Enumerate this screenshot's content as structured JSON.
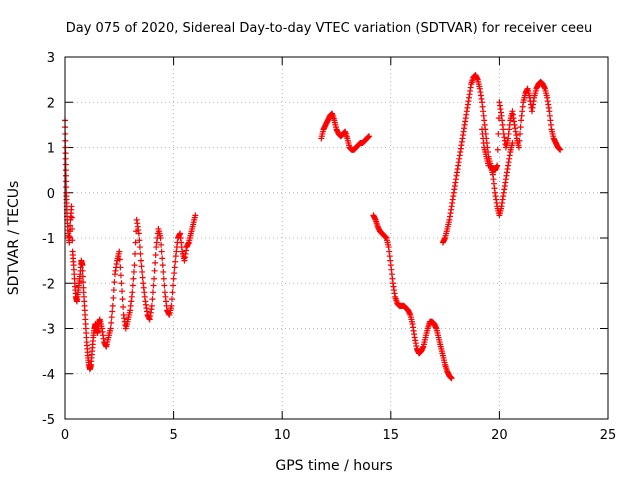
{
  "chart_data": {
    "type": "scatter",
    "title": "Day 075 of 2020, Sidereal Day-to-day VTEC variation (SDTVAR) for receiver ceeu",
    "xlabel": "GPS time / hours",
    "ylabel": "SDTVAR / TECUs",
    "xlim": [
      0,
      25
    ],
    "ylim": [
      -5,
      3
    ],
    "x_ticks": [
      0,
      5,
      10,
      15,
      20,
      25
    ],
    "y_ticks": [
      -5,
      -4,
      -3,
      -2,
      -1,
      0,
      1,
      2,
      3
    ],
    "x_tick_labels": [
      "0",
      "5",
      "10",
      "15",
      "20",
      "25"
    ],
    "y_tick_labels": [
      "-5",
      "-4",
      "-3",
      "-2",
      "-1",
      "0",
      "1",
      "2",
      "3"
    ],
    "grid": true,
    "marker": "+",
    "color": "#ff0000",
    "series": [
      {
        "name": "SDTVAR",
        "segments": [
          {
            "x": [
              0.0,
              0.02,
              0.04,
              0.06,
              0.08,
              0.1,
              0.15,
              0.2,
              0.25,
              0.3,
              0.35,
              0.4,
              0.45,
              0.5,
              0.55,
              0.6,
              0.65,
              0.7,
              0.75,
              0.8,
              0.85,
              0.9,
              0.95,
              1.0,
              1.05,
              1.1,
              1.15,
              1.2,
              1.25,
              1.3,
              1.35,
              1.4,
              1.45,
              1.5,
              1.55,
              1.6,
              1.7,
              1.8,
              1.9,
              2.0,
              2.1,
              2.2,
              2.3,
              2.4,
              2.5,
              2.6,
              2.7,
              2.8,
              2.9,
              3.0,
              3.1,
              3.2,
              3.3,
              3.4,
              3.5,
              3.6,
              3.7,
              3.8,
              3.9,
              4.0,
              4.1,
              4.2,
              4.3,
              4.4,
              4.5,
              4.6,
              4.7,
              4.8,
              4.9,
              5.0,
              5.1,
              5.2,
              5.3,
              5.4,
              5.5,
              5.6,
              5.7,
              5.8,
              5.9,
              6.0
            ],
            "y": [
              1.6,
              1.0,
              0.5,
              0.0,
              -0.3,
              -0.6,
              -0.9,
              -1.1,
              -0.6,
              -0.3,
              -1.3,
              -1.6,
              -2.0,
              -2.3,
              -2.4,
              -2.2,
              -2.0,
              -1.8,
              -1.5,
              -1.6,
              -2.1,
              -2.5,
              -2.9,
              -3.3,
              -3.6,
              -3.8,
              -3.9,
              -3.8,
              -3.5,
              -3.2,
              -3.0,
              -2.9,
              -3.0,
              -3.1,
              -2.9,
              -2.8,
              -3.0,
              -3.3,
              -3.4,
              -3.2,
              -3.0,
              -2.5,
              -1.8,
              -1.5,
              -1.3,
              -2.0,
              -2.7,
              -3.0,
              -2.8,
              -2.6,
              -2.2,
              -1.6,
              -0.6,
              -0.9,
              -1.5,
              -2.0,
              -2.4,
              -2.7,
              -2.8,
              -2.5,
              -1.9,
              -1.2,
              -0.8,
              -1.0,
              -1.6,
              -2.2,
              -2.6,
              -2.7,
              -2.5,
              -1.9,
              -1.4,
              -1.0,
              -0.9,
              -1.3,
              -1.5,
              -1.2,
              -1.1,
              -0.9,
              -0.7,
              -0.5
            ]
          },
          {
            "x": [
              11.8,
              11.9,
              12.0,
              12.1,
              12.2,
              12.3,
              12.4,
              12.5,
              12.6,
              12.7,
              12.8,
              12.9,
              13.0,
              13.1,
              13.2,
              13.3,
              13.4,
              13.5,
              13.6,
              13.7,
              13.8,
              13.9,
              14.0
            ],
            "y": [
              1.2,
              1.4,
              1.5,
              1.6,
              1.7,
              1.75,
              1.6,
              1.4,
              1.3,
              1.25,
              1.3,
              1.35,
              1.2,
              1.0,
              0.95,
              0.95,
              1.0,
              1.05,
              1.1,
              1.1,
              1.15,
              1.2,
              1.25
            ]
          },
          {
            "x": [
              14.2,
              14.3,
              14.4,
              14.5,
              14.6,
              14.7,
              14.8,
              14.9,
              15.0,
              15.1,
              15.2,
              15.3,
              15.4,
              15.5,
              15.6,
              15.7,
              15.8,
              15.9,
              16.0,
              16.1,
              16.2,
              16.3,
              16.4,
              16.5,
              16.6,
              16.7,
              16.8,
              16.9,
              17.0,
              17.1,
              17.2,
              17.3,
              17.4,
              17.5,
              17.6,
              17.7,
              17.8
            ],
            "y": [
              -0.5,
              -0.6,
              -0.75,
              -0.85,
              -0.9,
              -0.95,
              -1.0,
              -1.2,
              -1.6,
              -2.0,
              -2.3,
              -2.45,
              -2.5,
              -2.5,
              -2.5,
              -2.55,
              -2.6,
              -2.7,
              -2.9,
              -3.2,
              -3.45,
              -3.55,
              -3.5,
              -3.4,
              -3.2,
              -3.0,
              -2.85,
              -2.85,
              -2.9,
              -3.0,
              -3.2,
              -3.4,
              -3.6,
              -3.8,
              -3.95,
              -4.05,
              -4.1
            ]
          },
          {
            "x": [
              17.4,
              17.5,
              17.6,
              17.7,
              17.8,
              17.9,
              18.0,
              18.1,
              18.2,
              18.3,
              18.4,
              18.5,
              18.6,
              18.7,
              18.8,
              18.9,
              19.0,
              19.1,
              19.2,
              19.3,
              19.4,
              19.5,
              19.6,
              19.7,
              19.8,
              19.9,
              20.0,
              20.1,
              20.2,
              20.3,
              20.4,
              20.5,
              20.6,
              20.7,
              20.8,
              20.9,
              21.0,
              21.1,
              21.2,
              21.3,
              21.4,
              21.5,
              21.6,
              21.7,
              21.8,
              21.9,
              22.0,
              22.1,
              22.2,
              22.3,
              22.4,
              22.5,
              22.6,
              22.7,
              22.8
            ],
            "y": [
              -1.1,
              -1.0,
              -0.8,
              -0.6,
              -0.3,
              0.0,
              0.3,
              0.6,
              0.9,
              1.2,
              1.5,
              1.8,
              2.1,
              2.4,
              2.55,
              2.6,
              2.5,
              2.3,
              2.0,
              1.6,
              1.2,
              0.8,
              0.6,
              0.5,
              0.5,
              0.6,
              2.0,
              1.7,
              1.3,
              1.0,
              1.2,
              1.6,
              1.8,
              1.5,
              1.2,
              1.0,
              1.6,
              2.0,
              2.2,
              2.3,
              2.1,
              1.8,
              2.1,
              2.3,
              2.4,
              2.45,
              2.4,
              2.3,
              2.1,
              1.8,
              1.4,
              1.2,
              1.1,
              1.0,
              0.95
            ]
          },
          {
            "x": [
              19.2,
              19.3,
              19.4,
              19.5,
              19.6,
              19.7,
              19.8,
              19.9,
              20.0,
              20.1,
              20.2,
              20.3,
              20.4,
              20.5,
              20.6
            ],
            "y": [
              1.4,
              1.0,
              0.8,
              0.6,
              0.6,
              0.4,
              0.0,
              -0.3,
              -0.5,
              -0.3,
              0.0,
              0.3,
              0.6,
              0.9,
              1.1
            ]
          }
        ]
      }
    ]
  }
}
